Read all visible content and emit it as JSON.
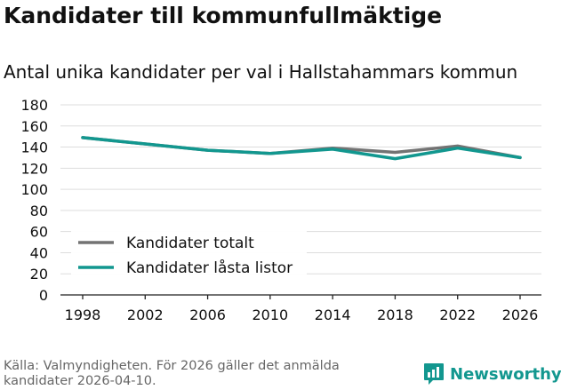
{
  "header": {
    "title": "Kandidater till kommunfullmäktige",
    "subtitle": "Antal unika kandidater per val i Hallstahammars kommun"
  },
  "footer": {
    "source": "Källa: Valmyndigheten. För 2026 gäller det anmälda kandidater 2026-04-10.",
    "brand": "Newsworthy",
    "brand_color": "#12978f"
  },
  "chart_data": {
    "type": "line",
    "title": "Kandidater till kommunfullmäktige",
    "subtitle": "Antal unika kandidater per val i Hallstahammars kommun",
    "xlabel": "",
    "ylabel": "",
    "x": [
      1998,
      2002,
      2006,
      2010,
      2014,
      2018,
      2022,
      2026
    ],
    "x_ticks": [
      "1998",
      "2002",
      "2006",
      "2010",
      "2014",
      "2018",
      "2022",
      "2026"
    ],
    "y_ticks": [
      0,
      20,
      40,
      60,
      80,
      100,
      120,
      140,
      160,
      180
    ],
    "ylim": [
      0,
      180
    ],
    "grid": true,
    "legend_position": "bottom-left",
    "series": [
      {
        "name": "Kandidater totalt",
        "color": "#737373",
        "values": [
          149,
          143,
          137,
          134,
          139,
          135,
          141,
          130
        ]
      },
      {
        "name": "Kandidater låsta listor",
        "color": "#12978f",
        "values": [
          149,
          143,
          137,
          134,
          138,
          129,
          139,
          130
        ]
      }
    ]
  }
}
